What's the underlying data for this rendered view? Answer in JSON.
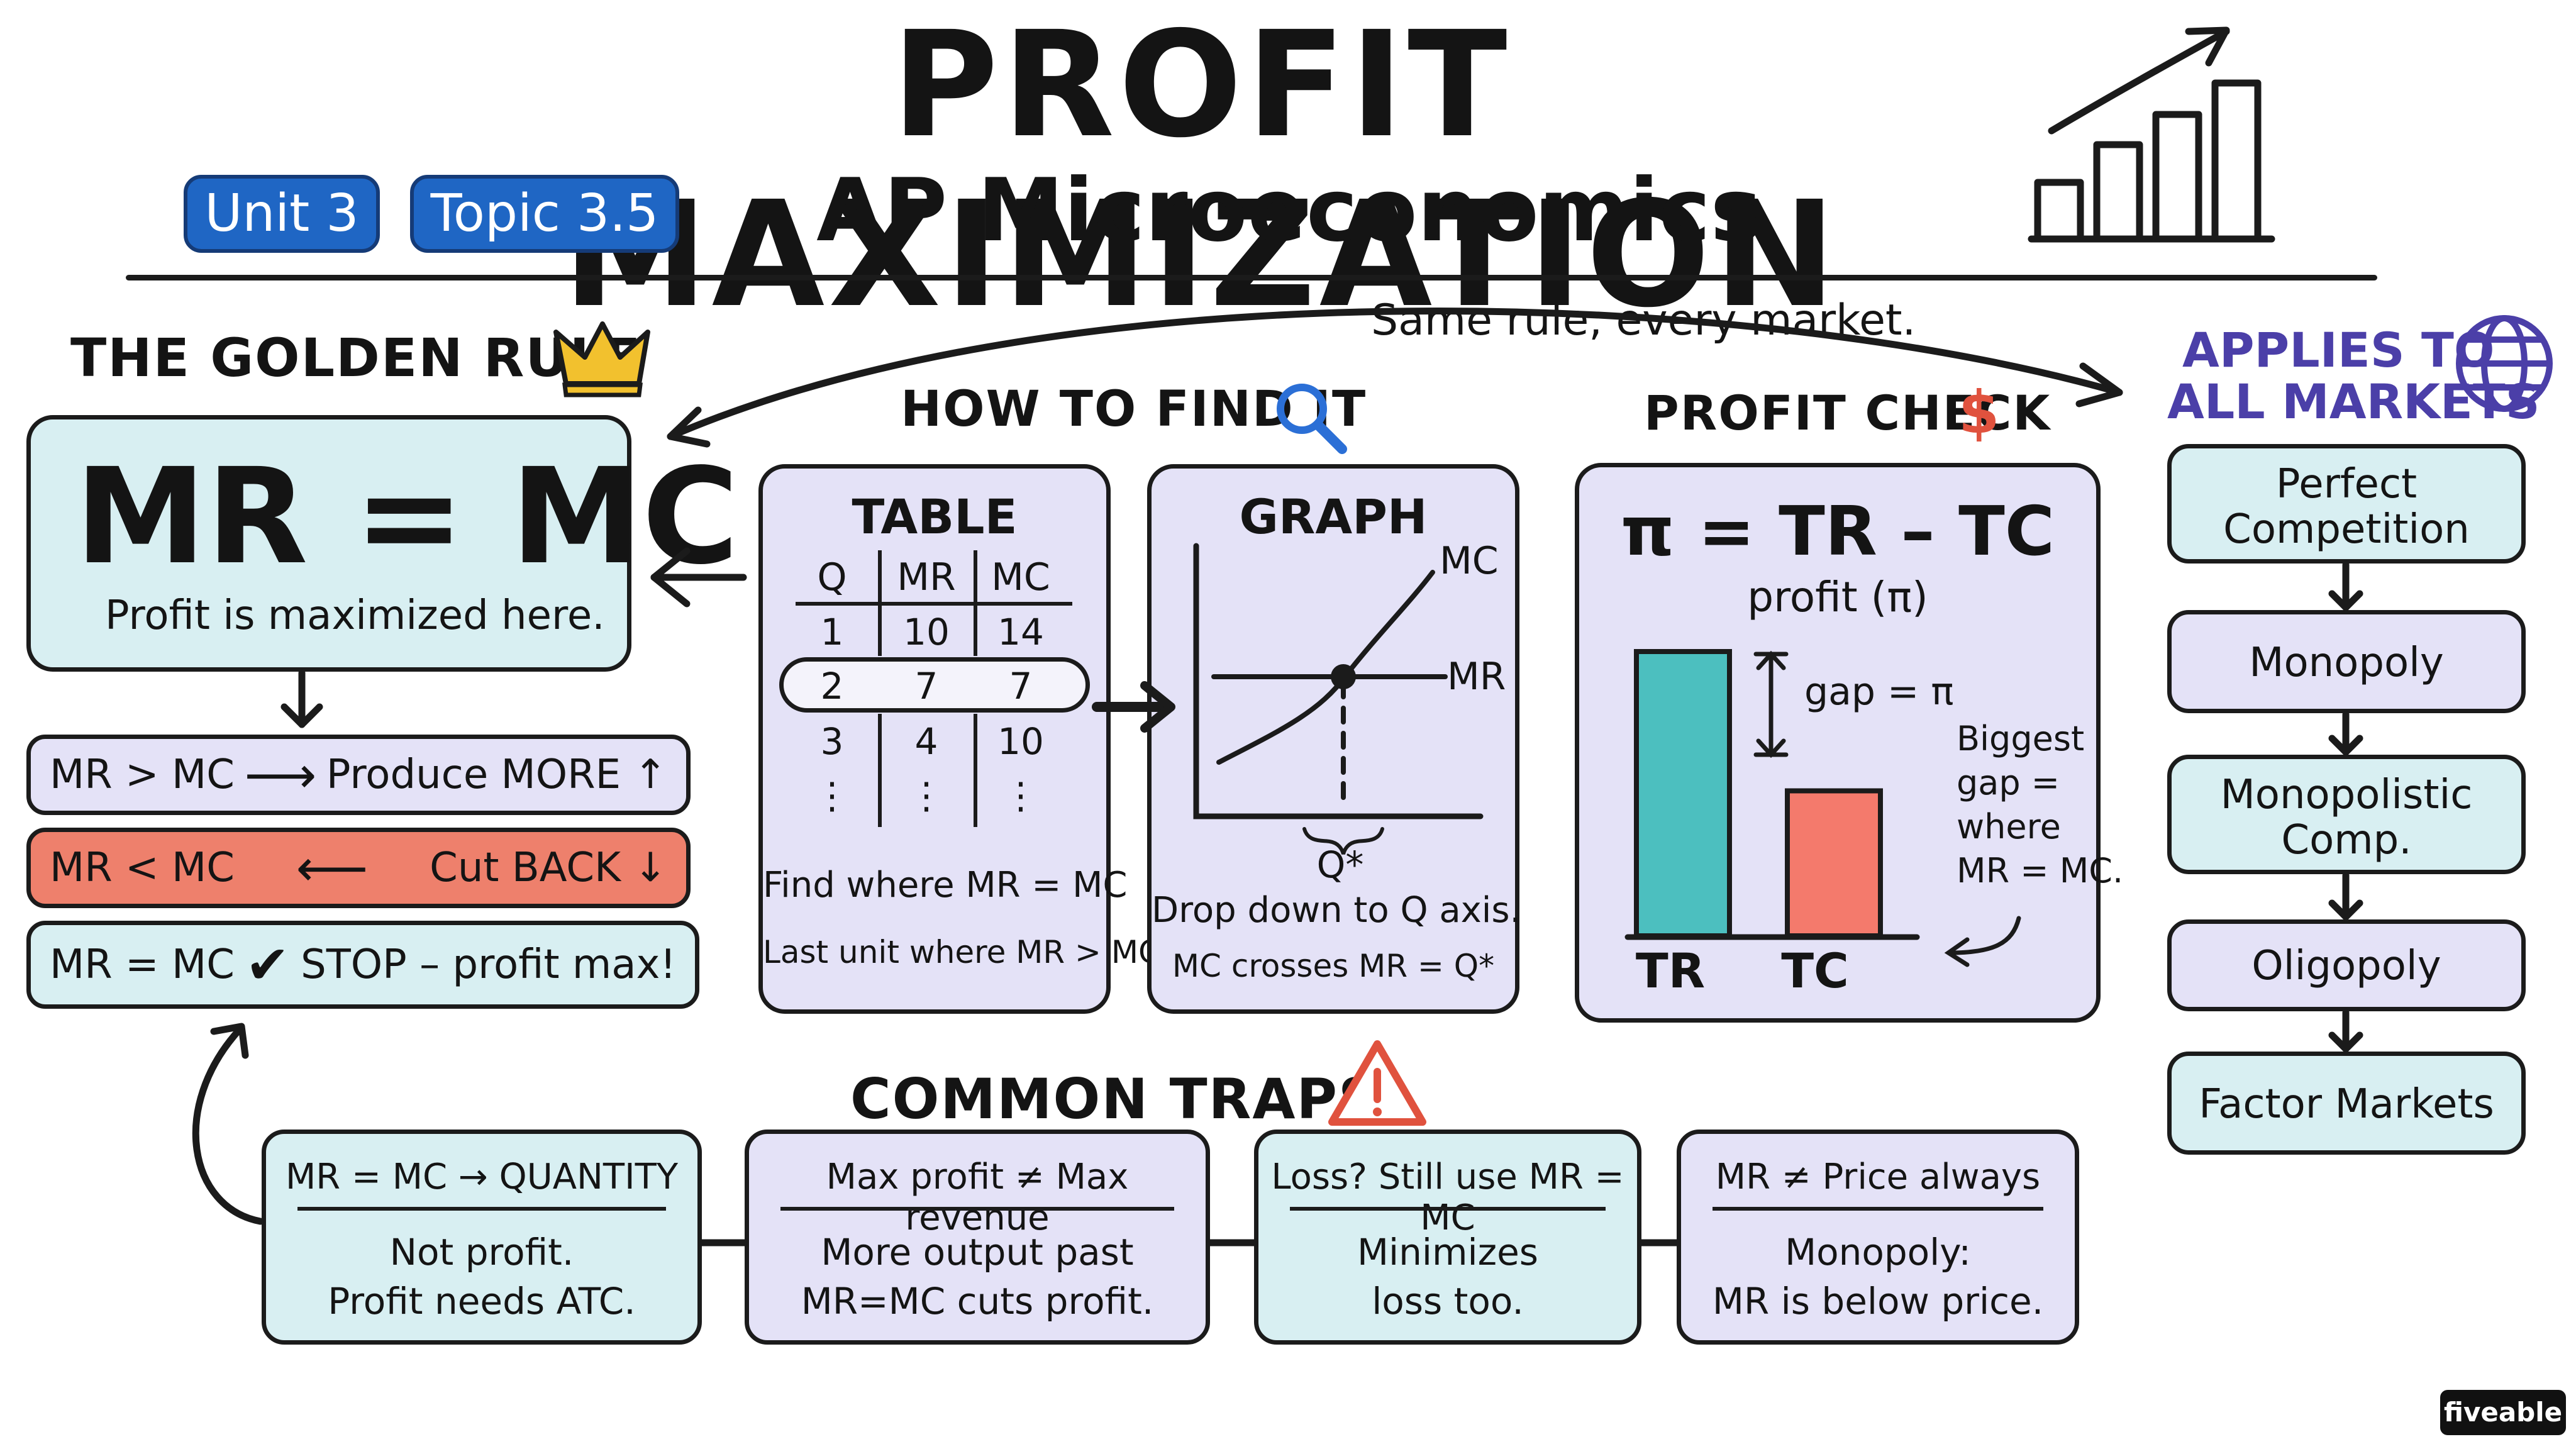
{
  "header": {
    "title": "PROFIT MAXIMIZATION",
    "subtitle": "AP Microeconomics",
    "badges": [
      "Unit 3",
      "Topic 3.5"
    ]
  },
  "golden_rule": {
    "heading": "THE GOLDEN RULE",
    "equation": "MR = MC",
    "caption": "Profit is maximized here.",
    "rules": [
      {
        "left": "MR > MC",
        "right": "Produce MORE ↑"
      },
      {
        "left": "MR < MC",
        "right": "Cut BACK ↓"
      },
      {
        "left": "MR = MC",
        "right": "STOP – profit max!"
      }
    ]
  },
  "arc_label": "Same rule, every market.",
  "how_to_find": {
    "heading": "HOW TO FIND IT",
    "table": {
      "title": "TABLE",
      "columns": [
        "Q",
        "MR",
        "MC"
      ],
      "rows": [
        [
          "1",
          "10",
          "14"
        ],
        [
          "2",
          "7",
          "7"
        ],
        [
          "3",
          "4",
          "10"
        ],
        [
          "⋮",
          "⋮",
          "⋮"
        ]
      ],
      "note1": "Find where MR = MC",
      "note2": "Last unit where MR > MC."
    },
    "graph": {
      "title": "GRAPH",
      "mc_label": "MC",
      "mr_label": "MR",
      "q_label": "Q*",
      "note1": "Drop down to Q axis.",
      "note2": "MC crosses MR = Q*"
    }
  },
  "profit_check": {
    "heading": "PROFIT CHECK",
    "formula": "π = TR – TC",
    "sub": "profit (π)",
    "gap_label": "gap = π",
    "annotation": [
      "Biggest",
      "gap =",
      "where",
      "MR = MC."
    ],
    "bars": [
      {
        "label": "TR",
        "value": 100,
        "color": "#4cbfbf"
      },
      {
        "label": "TC",
        "value": 51,
        "color": "#f47a6c"
      }
    ]
  },
  "applies": {
    "heading_line1": "APPLIES TO",
    "heading_line2": "ALL MARKETS",
    "markets": [
      {
        "line1": "Perfect",
        "line2": "Competition"
      },
      {
        "line1": "Monopoly",
        "line2": ""
      },
      {
        "line1": "Monopolistic",
        "line2": "Comp."
      },
      {
        "line1": "Oligopoly",
        "line2": ""
      },
      {
        "line1": "Factor Markets",
        "line2": ""
      }
    ]
  },
  "traps": {
    "heading": "COMMON TRAPS",
    "items": [
      {
        "title": "MR = MC → QUANTITY",
        "line1": "Not profit.",
        "line2": "Profit needs ATC."
      },
      {
        "title": "Max profit ≠ Max revenue",
        "line1": "More output past",
        "line2": "MR=MC cuts profit."
      },
      {
        "title": "Loss? Still use MR = MC",
        "line1": "Minimizes",
        "line2": "loss too."
      },
      {
        "title": "MR ≠ Price always",
        "line1": "Monopoly:",
        "line2": "MR is below price."
      }
    ]
  },
  "logo": "fiveable",
  "colors": {
    "cyan": "#d8eff2",
    "lavender": "#e4e2f7",
    "salmon": "#ee806c",
    "badge_blue": "#1f66c4",
    "heading_purple": "#4b3fa8",
    "dollar_red": "#e0523e",
    "search_blue": "#2b6fd6"
  }
}
